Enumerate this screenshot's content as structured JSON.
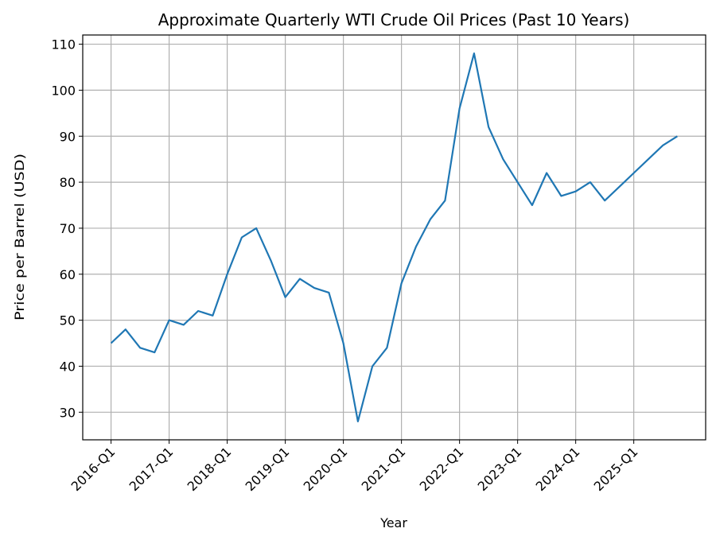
{
  "chart_data": {
    "type": "line",
    "title": "Approximate Quarterly WTI Crude Oil Prices (Past 10 Years)",
    "xlabel": "Year",
    "ylabel": "Price per Barrel (USD)",
    "ylim": [
      24,
      112
    ],
    "yticks": [
      30,
      40,
      50,
      60,
      70,
      80,
      90,
      100,
      110
    ],
    "xtick_labels": [
      "2016-Q1",
      "2017-Q1",
      "2018-Q1",
      "2019-Q1",
      "2020-Q1",
      "2021-Q1",
      "2022-Q1",
      "2023-Q1",
      "2024-Q1",
      "2025-Q1"
    ],
    "grid": true,
    "line_color": "#1f77b4",
    "series": [
      {
        "name": "WTI",
        "values": [
          45,
          48,
          44,
          43,
          50,
          49,
          52,
          51,
          60,
          68,
          70,
          63,
          55,
          59,
          57,
          56,
          45,
          28,
          40,
          44,
          58,
          66,
          72,
          76,
          96,
          108,
          92,
          85,
          80,
          75,
          82,
          77,
          78,
          80,
          76,
          79,
          82,
          85,
          88,
          90
        ]
      }
    ]
  }
}
